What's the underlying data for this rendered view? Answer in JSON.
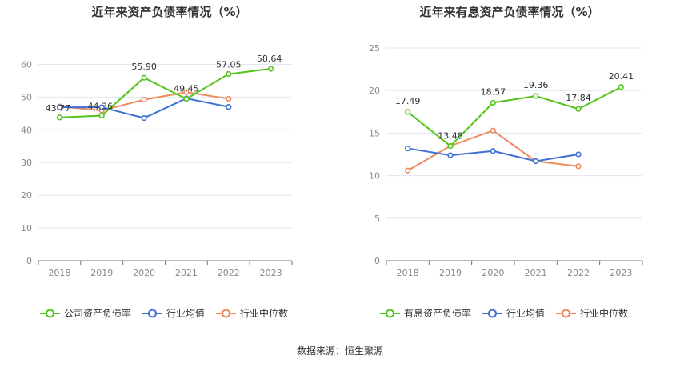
{
  "source": "数据来源：恒生聚源",
  "chart_data": [
    {
      "type": "line",
      "title": "近年来资产负债率情况（%）",
      "categories": [
        "2018",
        "2019",
        "2020",
        "2021",
        "2022",
        "2023"
      ],
      "ylim": [
        0,
        65
      ],
      "yticks": [
        0,
        10,
        20,
        30,
        40,
        50,
        60
      ],
      "grid": true,
      "legend_position": "bottom",
      "series": [
        {
          "name": "公司资产负债率",
          "color": "#52c41a",
          "values": [
            43.77,
            44.36,
            55.9,
            49.45,
            57.05,
            58.64
          ],
          "labels": [
            "43.77",
            "44.36",
            "55.90",
            "49.45",
            "57.05",
            "58.64"
          ]
        },
        {
          "name": "行业均值",
          "color": "#3b6fd6",
          "values": [
            46.9,
            46.9,
            43.6,
            49.6,
            47.0,
            null
          ]
        },
        {
          "name": "行业中位数",
          "color": "#f08a5d",
          "values": [
            47.1,
            45.9,
            49.2,
            51.5,
            49.5,
            null
          ]
        }
      ]
    },
    {
      "type": "line",
      "title": "近年来有息资产负债率情况（%）",
      "categories": [
        "2018",
        "2019",
        "2020",
        "2021",
        "2022",
        "2023"
      ],
      "ylim": [
        0,
        25
      ],
      "yticks": [
        0,
        5,
        10,
        15,
        20,
        25
      ],
      "grid": true,
      "legend_position": "bottom",
      "series": [
        {
          "name": "有息资产负债率",
          "color": "#52c41a",
          "values": [
            17.49,
            13.48,
            18.57,
            19.36,
            17.84,
            20.41
          ],
          "labels": [
            "17.49",
            "13.48",
            "18.57",
            "19.36",
            "17.84",
            "20.41"
          ]
        },
        {
          "name": "行业均值",
          "color": "#3b6fd6",
          "values": [
            13.2,
            12.4,
            12.9,
            11.7,
            12.5,
            null
          ]
        },
        {
          "name": "行业中位数",
          "color": "#f08a5d",
          "values": [
            10.6,
            13.5,
            15.3,
            11.7,
            11.1,
            null
          ]
        }
      ]
    }
  ]
}
